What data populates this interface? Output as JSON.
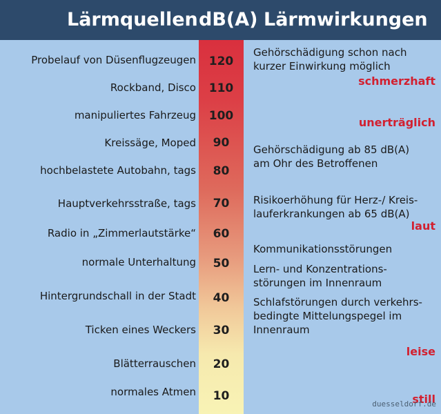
{
  "header": {
    "sources_title": "Lärmquellen",
    "db_title": "dB(A)",
    "effects_title": "Lärmwirkungen"
  },
  "rows": [
    {
      "source": "Probelauf von Düsenflugzeugen",
      "db": "120"
    },
    {
      "source": "Rockband, Disco",
      "db": "110"
    },
    {
      "source": "manipuliertes Fahrzeug",
      "db": "100"
    },
    {
      "source": "Kreissäge, Moped",
      "db": "90"
    },
    {
      "source": "hochbelastete Autobahn, tags",
      "db": "80"
    },
    {
      "source": "Hauptverkehrsstraße, tags",
      "db": "70"
    },
    {
      "source": "Radio in „Zimmerlautstärke“",
      "db": "60"
    },
    {
      "source": "normale Unterhaltung",
      "db": "50"
    },
    {
      "source": "Hintergrundschall in der Stadt",
      "db": "40"
    },
    {
      "source": "Ticken eines Weckers",
      "db": "30"
    },
    {
      "source": "Blätterrauschen",
      "db": "20"
    },
    {
      "source": "normales Atmen",
      "db": "10"
    }
  ],
  "effects": [
    "Gehörschädigung schon nach kurzer Einwirkung möglich",
    "Gehörschädigung ab 85 dB(A) am Ohr des Betroffenen",
    "Risikoerhöhung für Herz-/ Kreislauferkrankungen ab 65 dB(A)",
    "Kommunikationsstörungen",
    "Lern- und Konzentrationsstörungen im Innenraum",
    "Schlafstörungen durch verkehrsbedingte Mittelungspegel im Innenraum"
  ],
  "effect_lines": [
    [
      "Gehörschädigung schon nach",
      "kurzer Einwirkung möglich"
    ],
    [
      "Gehörschädigung ab 85 dB(A)",
      "am Ohr des Betroffenen"
    ],
    [
      "Risikoerhöhung für Herz-/ Kreis-",
      "lauferkrankungen ab 65 dB(A)"
    ],
    [
      "Kommunikationsstörungen"
    ],
    [
      "Lern- und Konzentrations-",
      "störungen im Innenraum"
    ],
    [
      "Schlafstörungen durch verkehrs-",
      "bedingte Mittelungspegel im",
      "Innenraum"
    ]
  ],
  "levels": [
    "schmerzhaft",
    "unerträglich",
    "laut",
    "leise",
    "still"
  ],
  "watermark": "duesseldorf.de",
  "colors": {
    "background": "#a8c9ea",
    "header": "#2d4a6b",
    "scale_top": "#d9303e",
    "scale_bottom": "#f8f3b5",
    "level_text": "#d22030"
  }
}
